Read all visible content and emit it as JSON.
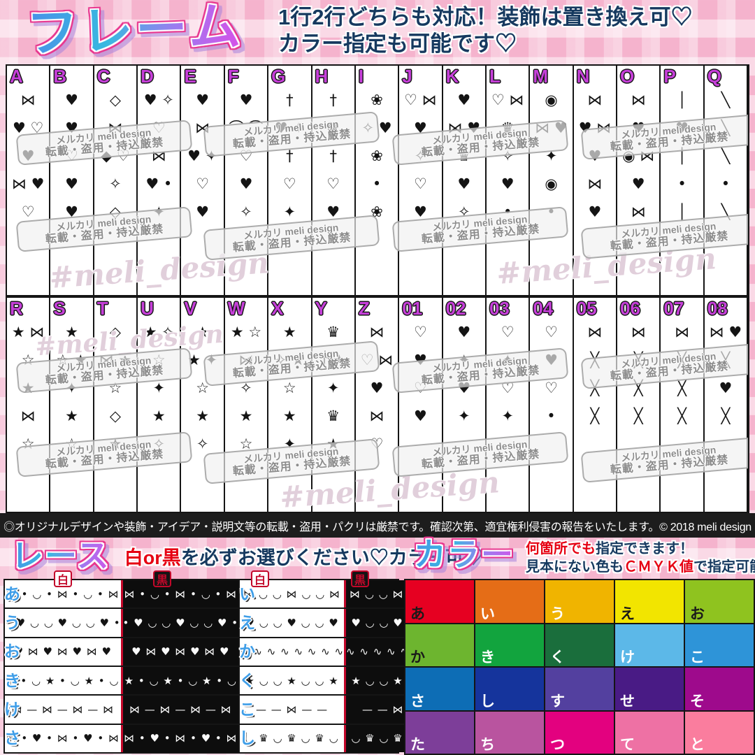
{
  "header": {
    "title": "フレーム",
    "info_line1": "1行2行どちらも対応！装飾は置き換え可♡",
    "info_line2": "カラー指定も可能です♡"
  },
  "watermark": {
    "line1": "メルカリ meli design",
    "line2": "転載・盗用・持込厳禁",
    "script": "#meli_design"
  },
  "frames": {
    "row1": [
      {
        "label": "A",
        "motifs": "hearts, bows",
        "glyphs": "⋈\n♥ ♡\n♥\n⋈ ♥\n♡"
      },
      {
        "label": "B",
        "motifs": "large hearts",
        "glyphs": "♥\n♥\n♡\n♥\n♥"
      },
      {
        "label": "C",
        "motifs": "gems, bows, hearts",
        "glyphs": "◇\n⋈\n◆ ♡\n✧\n◇"
      },
      {
        "label": "D",
        "motifs": "hearts, sparkles, bows",
        "glyphs": "♥ ✧\n♡\n⋈\n♥ •\n✦"
      },
      {
        "label": "E",
        "motifs": "hearts, bows, sparkles",
        "glyphs": "♥\n⋈\n♥ ✦\n♡\n♥"
      },
      {
        "label": "F",
        "motifs": "hearts, angel wings",
        "glyphs": "♥\n⌒ ⌒\n♡\n♥\n✧"
      },
      {
        "label": "G",
        "motifs": "crosses, bat wings, sparkles",
        "glyphs": "†\n♥ ✧\n†\n♡\n✦"
      },
      {
        "label": "H",
        "motifs": "large cross, hearts",
        "glyphs": "†\n♥\n†\n♡\n♥"
      },
      {
        "label": "I",
        "motifs": "roses, sparkles",
        "glyphs": "❀\n✧ ♥\n❀\n•\n❀"
      },
      {
        "label": "J",
        "motifs": "halftone hearts, bows, sparkles",
        "glyphs": "♡ ⋈\n♥\n✧\n♡\n♥"
      },
      {
        "label": "K",
        "motifs": "hearts, crown, bows",
        "glyphs": "♥\n⋈ ♥\n♛\n♥\n✧"
      },
      {
        "label": "L",
        "motifs": "hearts, bows, crown, sparkles",
        "glyphs": "♡ ⋈\n♛\n✧\n♥\n•"
      },
      {
        "label": "M",
        "motifs": "lollipop, candy, bows, hearts",
        "glyphs": "◉\n⋈ ♥\n✦\n◉\n•"
      },
      {
        "label": "N",
        "motifs": "candies, bows, hearts",
        "glyphs": "⋈\n♥ ⋈\n♥\n⋈\n♥"
      },
      {
        "label": "O",
        "motifs": "teddy bear, bows, hearts",
        "glyphs": "⋈\n♥\n◉ ⋈\n♥\n⋈"
      },
      {
        "label": "P",
        "motifs": "hat pin, hearts",
        "glyphs": "│\n♥\n│\n•\n│"
      },
      {
        "label": "Q",
        "motifs": "long needle",
        "glyphs": "╲\n╲\n╲\n•\n╲"
      }
    ],
    "row2": [
      {
        "label": "R",
        "motifs": "stars, bows",
        "glyphs": "★ ⋈\n☆\n★\n⋈\n☆"
      },
      {
        "label": "S",
        "motifs": "large stars",
        "glyphs": "★\n☆ ★\n✦\n★\n☆"
      },
      {
        "label": "T",
        "motifs": "gem, bows, stars",
        "glyphs": "◇\n⋈ ★\n☆\n◇\n★"
      },
      {
        "label": "U",
        "motifs": "stars, sparkles",
        "glyphs": "★ ✧\n☆\n✦\n★\n✧"
      },
      {
        "label": "V",
        "motifs": "shooting stars",
        "glyphs": "★\n★ ✦\n☆\n★\n✧"
      },
      {
        "label": "W",
        "motifs": "stars, sparkles, bows",
        "glyphs": "★ ☆\n⋈\n✧\n★\n☆"
      },
      {
        "label": "X",
        "motifs": "stars, sparkles",
        "glyphs": "★\n✧ ★\n☆\n★\n✦"
      },
      {
        "label": "Y",
        "motifs": "crown, crosses, stars",
        "glyphs": "♛\n† ★\n✦\n♛\n★"
      },
      {
        "label": "Z",
        "motifs": "layered ribbons, bows",
        "glyphs": "⋈\n♡ ⋈\n♥\n⋈\n♡"
      },
      {
        "label": "01",
        "motifs": "heart outline stack",
        "glyphs": "♡\n♥\n♡\n♥"
      },
      {
        "label": "02",
        "motifs": "filled hearts, sparkle",
        "glyphs": "♥\n✦\n♥\n✦"
      },
      {
        "label": "03",
        "motifs": "bold heart outline, sparkles",
        "glyphs": "♡\n✦\n♡\n✦"
      },
      {
        "label": "04",
        "motifs": "thin heart outline",
        "glyphs": "♡\n♥\n♡\n•"
      },
      {
        "label": "05",
        "motifs": "black bow, crossed pins",
        "glyphs": "⋈\n╳\n╳\n╳"
      },
      {
        "label": "06",
        "motifs": "white bow, crossed pins",
        "glyphs": "⋈\n╳\n╳\n╳"
      },
      {
        "label": "07",
        "motifs": "bow, crossed pins",
        "glyphs": "⋈\n╳\n╳\n╳"
      },
      {
        "label": "08",
        "motifs": "small bow, heart, crossed pins",
        "glyphs": "⋈ ♥\n╳\n♥\n╳"
      }
    ]
  },
  "disclaimer": "◎オリジナルデザインや装飾・アイデア・説明文等の転載・盗用・パクリは厳禁です。確認次第、適宜権利侵害の報告をいたします。© 2018 meli design",
  "lace": {
    "title": "レース",
    "note_red": "白or黒",
    "note_rest": "を必ずお選びください♡カラー可♡",
    "col_white": "白",
    "col_black": "黒",
    "rows_left": [
      {
        "label": "あ",
        "motifs": "scallop lace, bows, dots",
        "glyphs": "⋈ • ◡ • ⋈ • ◡ • ⋈"
      },
      {
        "label": "う",
        "motifs": "scallop lace, hearts, dots",
        "glyphs": "• ♥ ◡ ◡ ♥ ◡ ◡ ♥ •"
      },
      {
        "label": "お",
        "motifs": "hearts and bows garland",
        "glyphs": "♥ ⋈ ♥ ⋈ ♥ ⋈ ♥"
      },
      {
        "label": "き",
        "motifs": "stars scallop lace",
        "glyphs": "★ • ◡ ★ • ◡ ★ • ◡"
      },
      {
        "label": "け",
        "motifs": "ribbon lace with bows",
        "glyphs": "⋈ — ⋈ — ⋈ — ⋈"
      },
      {
        "label": "さ",
        "motifs": "scallop lace, bows, hearts",
        "glyphs": "⋈ • ♥ • ⋈ • ♥ • ⋈"
      }
    ],
    "rows_right": [
      {
        "label": "い",
        "motifs": "scallop lace with bows",
        "glyphs": "⋈ ◡ ◡ ⋈ ◡ ◡ ⋈"
      },
      {
        "label": "え",
        "motifs": "scallop lace with hearts",
        "glyphs": "♥ ◡ ◡ ♥ ◡ ◡ ♥"
      },
      {
        "label": "か",
        "motifs": "gathered frill lace",
        "glyphs": "∿ ∿ ∿ ∿ ∿ ∿ ∿ ∿"
      },
      {
        "label": "く",
        "motifs": "stars scallop lace",
        "glyphs": "★ ◡ ◡ ★ ◡ ◡ ★"
      },
      {
        "label": "こ",
        "motifs": "ribbon with large bow",
        "glyphs": "— — ⋈ — —"
      },
      {
        "label": "し",
        "motifs": "crown lace trim",
        "glyphs": "◡ ♛ ◡ ♛ ◡ ♛ ◡"
      }
    ]
  },
  "color": {
    "title": "カラー",
    "note1_red": "何箇所でも",
    "note1_rest": "指定できます！",
    "note2_pre": "見本にない色も",
    "note2_red": "ＣＭＹＫ値",
    "note2_post": "で指定可能♡",
    "swatches": [
      {
        "label": "あ",
        "hex": "#e60021",
        "text": "#1a1a1a"
      },
      {
        "label": "い",
        "hex": "#e56d17",
        "text": "#ffffff"
      },
      {
        "label": "う",
        "hex": "#f0b400",
        "text": "#ffffff"
      },
      {
        "label": "え",
        "hex": "#f2e500",
        "text": "#1a1a1a"
      },
      {
        "label": "お",
        "hex": "#8fc31f",
        "text": "#1a1a1a"
      },
      {
        "label": "か",
        "hex": "#6db52f",
        "text": "#1a1a1a"
      },
      {
        "label": "き",
        "hex": "#12a43e",
        "text": "#ffffff"
      },
      {
        "label": "く",
        "hex": "#1a6e3c",
        "text": "#ffffff"
      },
      {
        "label": "け",
        "hex": "#5cb8e8",
        "text": "#ffffff"
      },
      {
        "label": "こ",
        "hex": "#2e94d8",
        "text": "#ffffff"
      },
      {
        "label": "さ",
        "hex": "#0d6db5",
        "text": "#ffffff"
      },
      {
        "label": "し",
        "hex": "#15349c",
        "text": "#ffffff"
      },
      {
        "label": "す",
        "hex": "#53409f",
        "text": "#ffffff"
      },
      {
        "label": "せ",
        "hex": "#491b85",
        "text": "#ffffff"
      },
      {
        "label": "そ",
        "hex": "#9e0a8c",
        "text": "#ffffff"
      },
      {
        "label": "た",
        "hex": "#7d3e99",
        "text": "#ffffff"
      },
      {
        "label": "ち",
        "hex": "#b9549f",
        "text": "#ffffff"
      },
      {
        "label": "つ",
        "hex": "#e3017f",
        "text": "#ffffff"
      },
      {
        "label": "て",
        "hex": "#ee71a4",
        "text": "#ffffff"
      },
      {
        "label": "と",
        "hex": "#fa7d9e",
        "text": "#ffffff"
      }
    ]
  },
  "accent_colors": {
    "title_outline_pink": "#e8378f",
    "frame_label_magenta": "#c63fd9",
    "text_navy": "#16395f",
    "text_red": "#e60012",
    "lace_label_blue": "#3f9ee8",
    "lace_divider_red": "#c3082a"
  }
}
